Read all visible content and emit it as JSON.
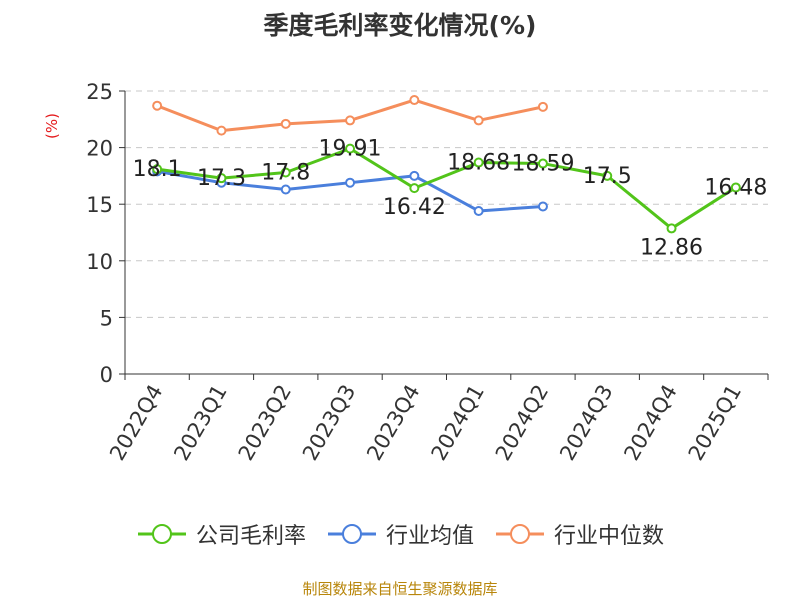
{
  "chart_data": {
    "type": "line",
    "title": "季度毛利率变化情况(%)",
    "ylabel": "(%)",
    "xlabel": "",
    "categories": [
      "2022Q4",
      "2023Q1",
      "2023Q2",
      "2023Q3",
      "2023Q4",
      "2024Q1",
      "2024Q2",
      "2024Q3",
      "2024Q4",
      "2025Q1"
    ],
    "ylim": [
      0,
      25
    ],
    "yticks": [
      0,
      5,
      10,
      15,
      20,
      25
    ],
    "grid": true,
    "legend_position": "bottom",
    "series": [
      {
        "name": "公司毛利率",
        "color": "#52c41a",
        "values": [
          18.1,
          17.3,
          17.8,
          19.91,
          16.42,
          18.68,
          18.59,
          17.5,
          12.86,
          16.48
        ],
        "data_labels": [
          "18.1",
          "17.3",
          "17.8",
          "19.91",
          "16.42",
          "18.68",
          "18.59",
          "17.5",
          "12.86",
          "16.48"
        ]
      },
      {
        "name": "行业均值",
        "color": "#4a7fdc",
        "values": [
          17.9,
          16.9,
          16.3,
          16.9,
          17.5,
          14.4,
          14.8,
          null,
          null,
          null
        ]
      },
      {
        "name": "行业中位数",
        "color": "#f58e5c",
        "values": [
          23.7,
          21.5,
          22.1,
          22.4,
          24.2,
          22.4,
          23.6,
          null,
          null,
          null
        ]
      }
    ]
  },
  "footer": {
    "source": "制图数据来自恒生聚源数据库"
  }
}
